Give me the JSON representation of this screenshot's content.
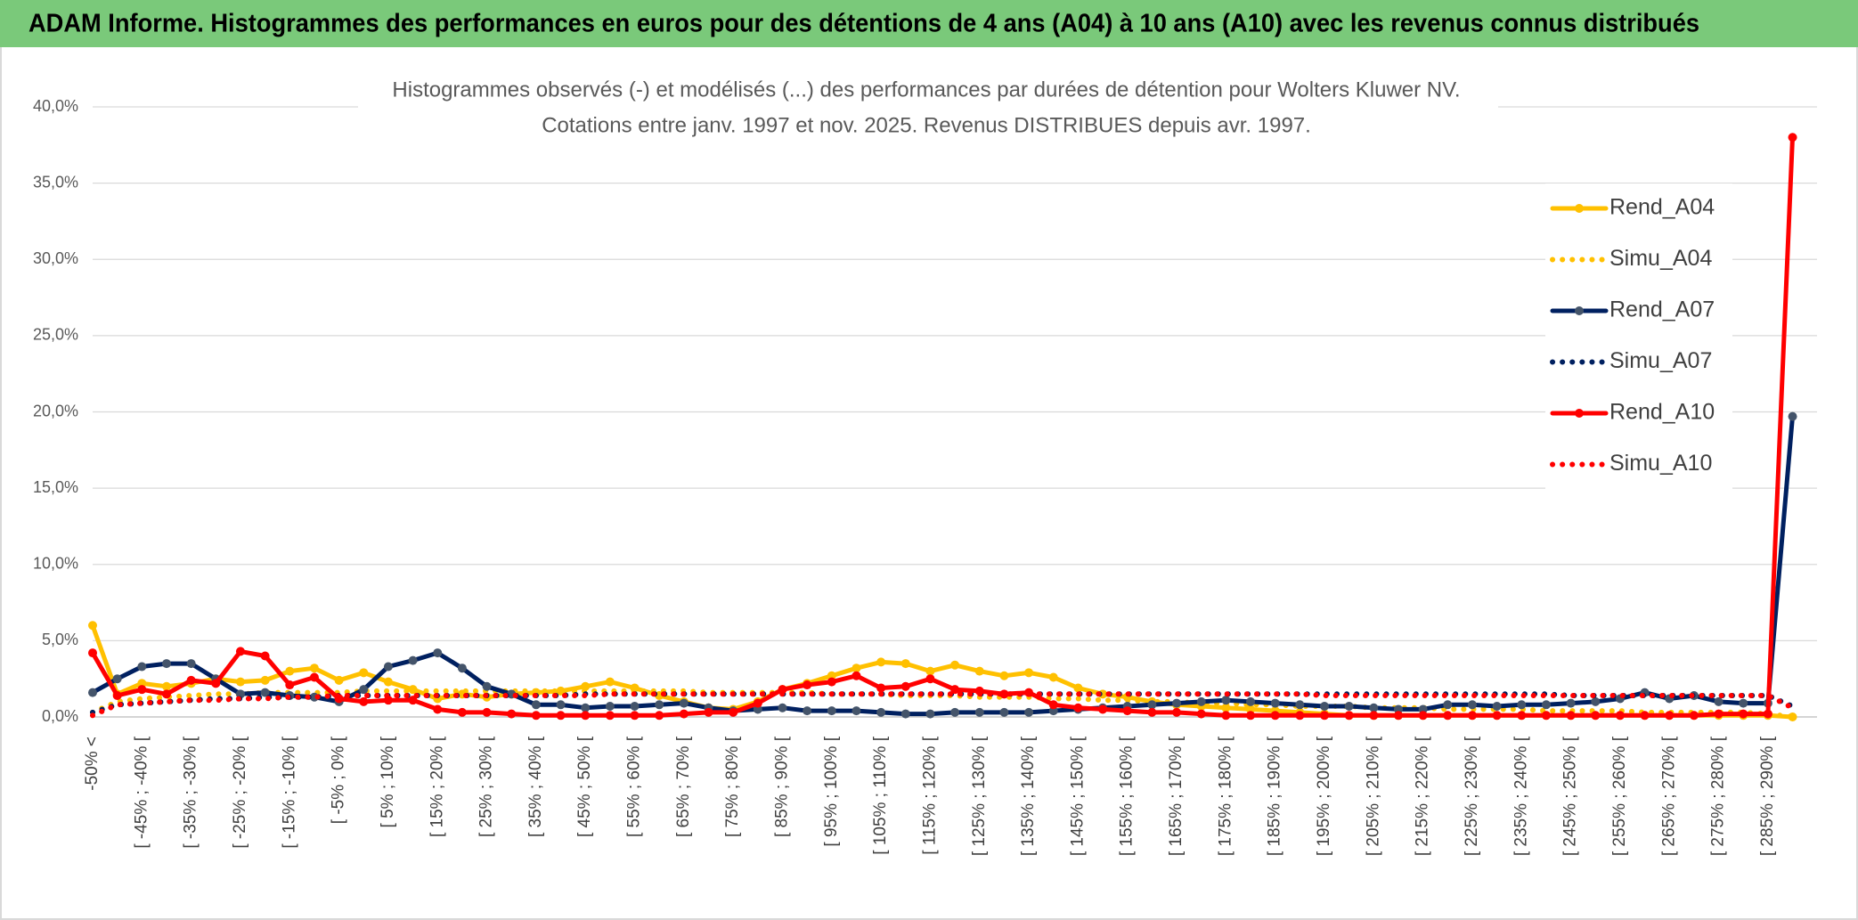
{
  "chart_data": {
    "type": "line",
    "header": "ADAM Informe. Histogrammes des performances en euros pour des détentions de 4 ans (A04) à 10 ans (A10) avec les revenus connus distribués",
    "title": "Histogrammes observés (-) et modélisés (...) des performances par durées de détention pour Wolters Kluwer NV.",
    "subtitle": "Cotations entre janv. 1997 et nov. 2025. Revenus DISTRIBUES depuis avr. 1997.",
    "categories": [
      "-50% <",
      null,
      "[ -45% ; -40% [",
      null,
      "[ -35% ; -30% [",
      null,
      "[ -25% ; -20% [",
      null,
      "[ -15% ; -10% [",
      null,
      "[ -5% ; 0% [",
      null,
      "[ 5% ; 10% [",
      null,
      "[ 15% ; 20% [",
      null,
      "[ 25% ; 30% [",
      null,
      "[ 35% ; 40% [",
      null,
      "[ 45% ; 50% [",
      null,
      "[ 55% ; 60% [",
      null,
      "[ 65% ; 70% [",
      null,
      "[ 75% ; 80% [",
      null,
      "[ 85% ; 90% [",
      null,
      "[ 95% ; 100% [",
      null,
      "[ 105% ; 110% [",
      null,
      "[ 115% ; 120% [",
      null,
      "[ 125% ; 130% [",
      null,
      "[ 135% ; 140% [",
      null,
      "[ 145% ; 150% [",
      null,
      "[ 155% ; 160% [",
      null,
      "[ 165% ; 170% [",
      null,
      "[ 175% ; 180% [",
      null,
      "[ 185% ; 190% [",
      null,
      "[ 195% ; 200% [",
      null,
      "[ 205% ; 210% [",
      null,
      "[ 215% ; 220% [",
      null,
      "[ 225% ; 230% [",
      null,
      "[ 235% ; 240% [",
      null,
      "[ 245% ; 250% [",
      null,
      "[ 255% ; 260% [",
      null,
      "[ 265% ; 270% [",
      null,
      "[ 275% ; 280% [",
      null,
      "[ 285% ; 290% [",
      null
    ],
    "series": [
      {
        "name": "Rend_A04",
        "color": "#ffc000",
        "style": "solid",
        "values": [
          6.0,
          1.5,
          2.2,
          2.0,
          2.2,
          2.5,
          2.3,
          2.4,
          3.0,
          3.2,
          2.4,
          2.9,
          2.3,
          1.8,
          1.2,
          1.5,
          1.3,
          1.5,
          1.6,
          1.7,
          2.0,
          2.3,
          1.9,
          1.4,
          1.0,
          0.6,
          0.5,
          1.0,
          1.8,
          2.2,
          2.7,
          3.2,
          3.6,
          3.5,
          3.0,
          3.4,
          3.0,
          2.7,
          2.9,
          2.6,
          1.9,
          1.5,
          1.3,
          1.0,
          0.8,
          0.7,
          0.6,
          0.5,
          0.4,
          0.3,
          0.2,
          0.1,
          0.1,
          0.1,
          0.1,
          0.1,
          0.1,
          0.1,
          0.1,
          0.1,
          0.1,
          0.1,
          0.1,
          0.1,
          0.1,
          0.1,
          0.1,
          0.1,
          0.1,
          0.0
        ]
      },
      {
        "name": "Simu_A04",
        "color": "#ffc000",
        "style": "dotted",
        "values": [
          0.3,
          1.0,
          1.2,
          1.3,
          1.4,
          1.5,
          1.5,
          1.6,
          1.6,
          1.6,
          1.6,
          1.7,
          1.7,
          1.7,
          1.7,
          1.7,
          1.7,
          1.7,
          1.7,
          1.7,
          1.7,
          1.7,
          1.7,
          1.7,
          1.7,
          1.6,
          1.6,
          1.6,
          1.6,
          1.6,
          1.5,
          1.5,
          1.5,
          1.4,
          1.4,
          1.4,
          1.3,
          1.3,
          1.3,
          1.2,
          1.2,
          1.1,
          1.1,
          1.0,
          1.0,
          0.9,
          0.9,
          0.8,
          0.8,
          0.7,
          0.7,
          0.7,
          0.6,
          0.6,
          0.6,
          0.5,
          0.5,
          0.5,
          0.5,
          0.4,
          0.4,
          0.4,
          0.4,
          0.3,
          0.3,
          0.3,
          0.3,
          0.3,
          0.2,
          0.0
        ]
      },
      {
        "name": "Rend_A07",
        "color": "#002060",
        "style": "solid",
        "values": [
          1.6,
          2.5,
          3.3,
          3.5,
          3.5,
          2.5,
          1.5,
          1.6,
          1.4,
          1.3,
          1.0,
          1.8,
          3.3,
          3.7,
          4.2,
          3.2,
          2.0,
          1.5,
          0.8,
          0.8,
          0.6,
          0.7,
          0.7,
          0.8,
          0.9,
          0.6,
          0.4,
          0.5,
          0.6,
          0.4,
          0.4,
          0.4,
          0.3,
          0.2,
          0.2,
          0.3,
          0.3,
          0.3,
          0.3,
          0.4,
          0.5,
          0.6,
          0.7,
          0.8,
          0.9,
          1.0,
          1.1,
          1.0,
          0.9,
          0.8,
          0.7,
          0.7,
          0.6,
          0.5,
          0.5,
          0.8,
          0.8,
          0.7,
          0.8,
          0.8,
          0.9,
          1.0,
          1.2,
          1.6,
          1.2,
          1.4,
          1.0,
          0.9,
          0.9,
          19.7
        ]
      },
      {
        "name": "Simu_A07",
        "color": "#002060",
        "style": "dotted",
        "values": [
          0.3,
          0.8,
          0.9,
          1.0,
          1.1,
          1.2,
          1.2,
          1.3,
          1.3,
          1.3,
          1.4,
          1.4,
          1.4,
          1.4,
          1.4,
          1.4,
          1.4,
          1.4,
          1.4,
          1.4,
          1.5,
          1.5,
          1.5,
          1.5,
          1.5,
          1.5,
          1.5,
          1.5,
          1.5,
          1.5,
          1.5,
          1.5,
          1.5,
          1.5,
          1.5,
          1.5,
          1.5,
          1.5,
          1.5,
          1.5,
          1.5,
          1.5,
          1.5,
          1.5,
          1.5,
          1.5,
          1.5,
          1.5,
          1.5,
          1.5,
          1.5,
          1.5,
          1.5,
          1.5,
          1.5,
          1.5,
          1.5,
          1.5,
          1.5,
          1.5,
          1.4,
          1.4,
          1.4,
          1.4,
          1.4,
          1.4,
          1.4,
          1.4,
          1.4,
          0.7
        ]
      },
      {
        "name": "Rend_A10",
        "color": "#ff0000",
        "style": "solid",
        "values": [
          4.2,
          1.4,
          1.8,
          1.5,
          2.4,
          2.2,
          4.3,
          4.0,
          2.1,
          2.6,
          1.2,
          1.0,
          1.1,
          1.1,
          0.5,
          0.3,
          0.3,
          0.2,
          0.1,
          0.1,
          0.1,
          0.1,
          0.1,
          0.1,
          0.2,
          0.3,
          0.3,
          0.9,
          1.8,
          2.1,
          2.3,
          2.7,
          1.9,
          2.0,
          2.5,
          1.8,
          1.7,
          1.5,
          1.6,
          0.8,
          0.6,
          0.5,
          0.4,
          0.3,
          0.3,
          0.2,
          0.1,
          0.1,
          0.1,
          0.1,
          0.1,
          0.1,
          0.1,
          0.1,
          0.1,
          0.1,
          0.1,
          0.1,
          0.1,
          0.1,
          0.1,
          0.1,
          0.1,
          0.1,
          0.1,
          0.1,
          0.2,
          0.2,
          0.2,
          38.0
        ]
      },
      {
        "name": "Simu_A10",
        "color": "#ff0000",
        "style": "dotted",
        "values": [
          0.1,
          0.8,
          0.9,
          1.0,
          1.1,
          1.1,
          1.2,
          1.2,
          1.3,
          1.3,
          1.4,
          1.4,
          1.4,
          1.4,
          1.4,
          1.4,
          1.4,
          1.4,
          1.4,
          1.4,
          1.4,
          1.5,
          1.5,
          1.5,
          1.5,
          1.5,
          1.5,
          1.5,
          1.5,
          1.5,
          1.5,
          1.5,
          1.5,
          1.5,
          1.5,
          1.5,
          1.5,
          1.5,
          1.5,
          1.5,
          1.5,
          1.5,
          1.5,
          1.5,
          1.5,
          1.5,
          1.5,
          1.5,
          1.5,
          1.5,
          1.4,
          1.4,
          1.4,
          1.4,
          1.4,
          1.4,
          1.4,
          1.4,
          1.4,
          1.4,
          1.4,
          1.4,
          1.4,
          1.4,
          1.4,
          1.4,
          1.4,
          1.4,
          1.4,
          0.6
        ]
      }
    ],
    "ylim": [
      0,
      40
    ],
    "yticks": [
      {
        "value": 0,
        "label": "0,0%"
      },
      {
        "value": 5,
        "label": "5,0%"
      },
      {
        "value": 10,
        "label": "10,0%"
      },
      {
        "value": 15,
        "label": "15,0%"
      },
      {
        "value": 20,
        "label": "20,0%"
      },
      {
        "value": 25,
        "label": "25,0%"
      },
      {
        "value": 30,
        "label": "30,0%"
      },
      {
        "value": 35,
        "label": "35,0%"
      },
      {
        "value": 40,
        "label": "40,0%"
      }
    ],
    "grid": true,
    "legend": "right"
  }
}
